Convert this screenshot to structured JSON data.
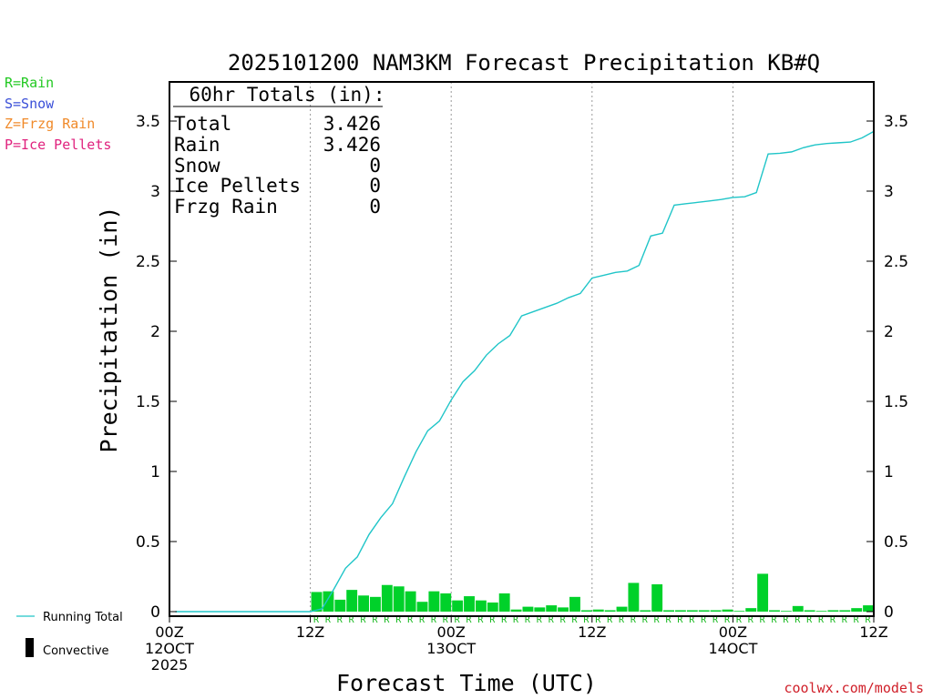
{
  "title": "2025101200 NAM3KM Forecast Precipitation KB#Q",
  "legend_types": [
    {
      "label": "R=Rain",
      "color": "#22c922"
    },
    {
      "label": "S=Snow",
      "color": "#3a4fd8"
    },
    {
      "label": "Z=Frzg Rain",
      "color": "#f08a2a"
    },
    {
      "label": "P=Ice Pellets",
      "color": "#e0227e"
    }
  ],
  "totals": {
    "header": "60hr Totals (in):",
    "rows": [
      {
        "label": "Total",
        "value": "3.426"
      },
      {
        "label": "Rain",
        "value": "3.426"
      },
      {
        "label": "Snow",
        "value": "0"
      },
      {
        "label": "Ice Pellets",
        "value": "0"
      },
      {
        "label": "Frzg Rain",
        "value": "0"
      }
    ]
  },
  "legend_bottom": {
    "running_total": "Running Total",
    "convective": "Convective"
  },
  "source": "coolwx.com/models",
  "colors": {
    "running_total": "#20c5c8",
    "bar": "#00d12a",
    "rain_marker": "#12b81a"
  },
  "chart_data": {
    "type": "bar+line",
    "title": "2025101200 NAM3KM Forecast Precipitation KB#Q",
    "xlabel": "Forecast Time (UTC)",
    "ylabel": "Precipitation (in)",
    "xlim": [
      0,
      60
    ],
    "ylim": [
      0,
      3.75
    ],
    "y_ticks": [
      0,
      0.5,
      1,
      1.5,
      2,
      2.5,
      3,
      3.5
    ],
    "y_tick_labels": [
      "0",
      "0.5",
      "1",
      "1.5",
      "2",
      "2.5",
      "3",
      "3.5"
    ],
    "x_ticks": [
      {
        "hour": 0,
        "lines": [
          "00Z",
          "12OCT",
          "2025"
        ]
      },
      {
        "hour": 12,
        "lines": [
          "12Z"
        ]
      },
      {
        "hour": 24,
        "lines": [
          "00Z",
          "13OCT"
        ]
      },
      {
        "hour": 36,
        "lines": [
          "12Z"
        ]
      },
      {
        "hour": 48,
        "lines": [
          "00Z",
          "14OCT"
        ]
      },
      {
        "hour": 60,
        "lines": [
          "12Z"
        ]
      }
    ],
    "vertical_dotted_hours": [
      12,
      24,
      36,
      48
    ],
    "hourly_precip": {
      "hours": [
        13,
        14,
        15,
        16,
        17,
        18,
        19,
        20,
        21,
        22,
        23,
        24,
        25,
        26,
        27,
        28,
        29,
        30,
        31,
        32,
        33,
        34,
        35,
        36,
        37,
        38,
        39,
        40,
        41,
        42,
        43,
        44,
        45,
        46,
        47,
        48,
        49,
        50,
        51,
        52,
        53,
        54,
        55,
        56,
        57,
        58,
        59,
        60
      ],
      "values": [
        0.14,
        0.145,
        0.085,
        0.155,
        0.115,
        0.105,
        0.19,
        0.18,
        0.145,
        0.07,
        0.145,
        0.13,
        0.08,
        0.11,
        0.08,
        0.065,
        0.13,
        0.015,
        0.035,
        0.03,
        0.045,
        0.03,
        0.105,
        0.01,
        0.015,
        0.01,
        0.035,
        0.205,
        0.01,
        0.195,
        0.01,
        0.01,
        0.01,
        0.01,
        0.01,
        0.015,
        0.005,
        0.025,
        0.27,
        0.01,
        0.005,
        0.04,
        0.01,
        0.005,
        0.01,
        0.01,
        0.025,
        0.045
      ],
      "type_markers": "R"
    },
    "running_total": {
      "hours": [
        1,
        2,
        3,
        4,
        5,
        6,
        7,
        8,
        9,
        10,
        11,
        12,
        13,
        14,
        15,
        16,
        17,
        18,
        19,
        20,
        21,
        22,
        23,
        24,
        25,
        26,
        27,
        28,
        29,
        30,
        31,
        32,
        33,
        34,
        35,
        36,
        37,
        38,
        39,
        40,
        41,
        42,
        43,
        44,
        45,
        46,
        47,
        48,
        49,
        50,
        51,
        52,
        53,
        54,
        55,
        56,
        57,
        58,
        59,
        60
      ],
      "values": [
        0,
        0,
        0,
        0,
        0,
        0,
        0,
        0,
        0,
        0,
        0,
        0,
        0.02,
        0.16,
        0.31,
        0.39,
        0.55,
        0.67,
        0.77,
        0.96,
        1.14,
        1.29,
        1.36,
        1.51,
        1.64,
        1.72,
        1.83,
        1.91,
        1.97,
        2.11,
        2.14,
        2.17,
        2.2,
        2.24,
        2.27,
        2.38,
        2.4,
        2.42,
        2.43,
        2.47,
        2.68,
        2.7,
        2.9,
        2.91,
        2.92,
        2.93,
        2.94,
        2.955,
        2.96,
        2.99,
        3.265,
        3.27,
        3.28,
        3.31,
        3.33,
        3.34,
        3.345,
        3.35,
        3.38,
        3.426
      ]
    }
  }
}
